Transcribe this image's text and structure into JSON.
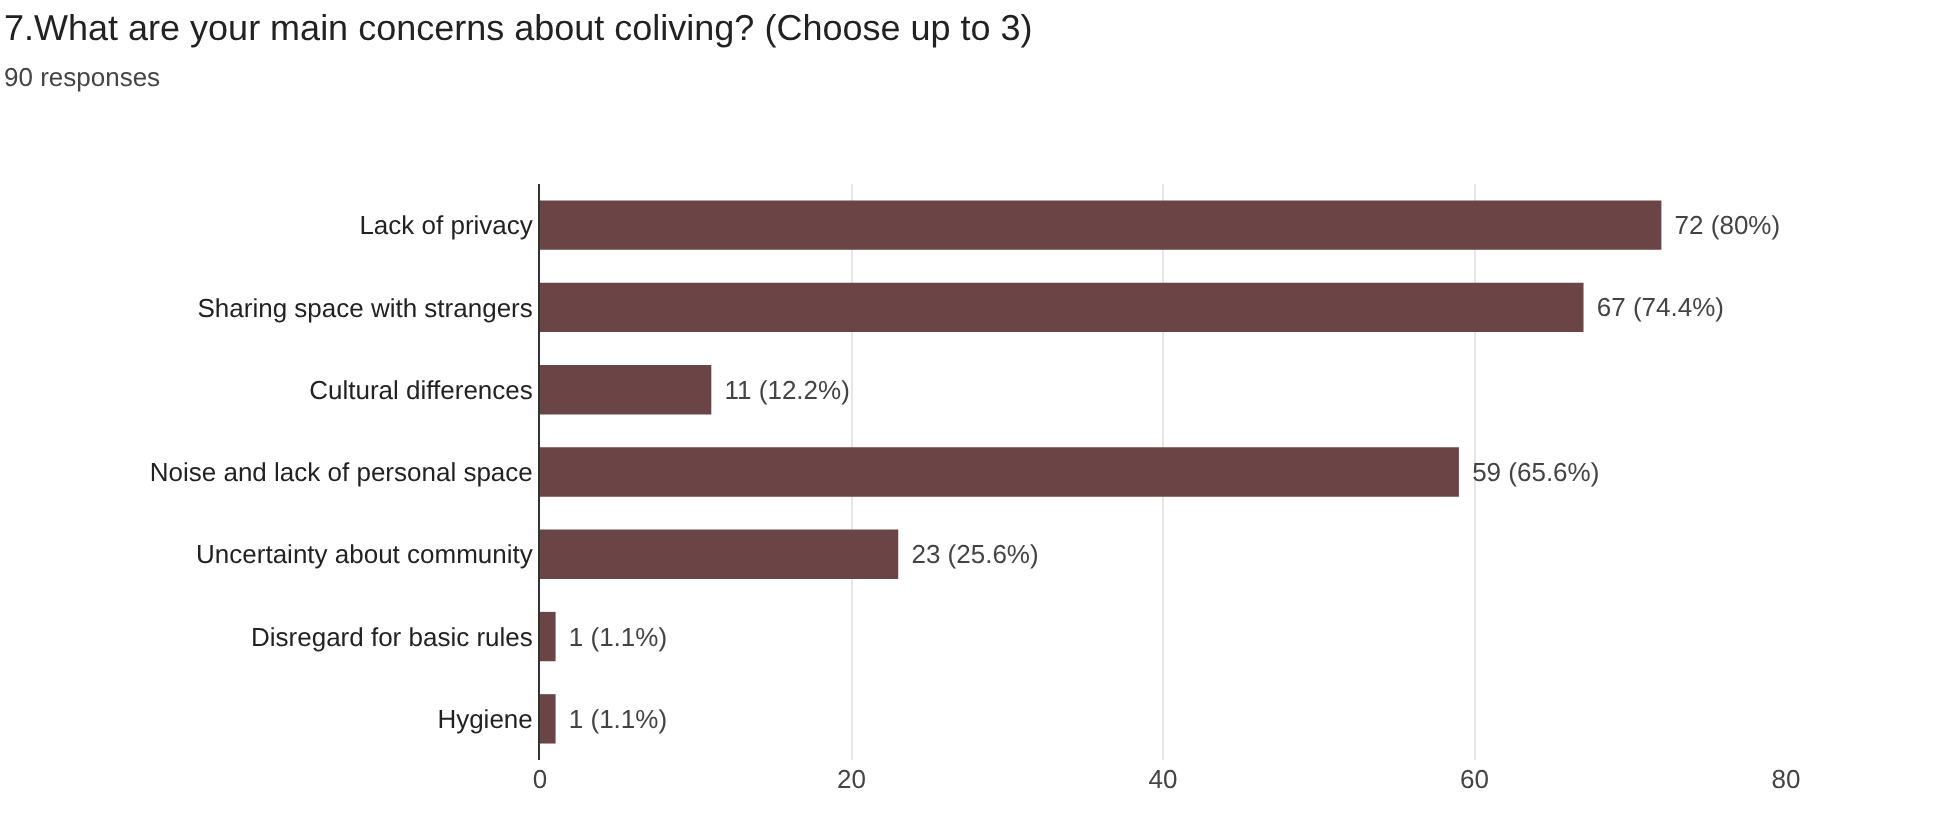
{
  "chart_data": {
    "type": "bar",
    "orientation": "horizontal",
    "title": "7.What are your main concerns about coliving? (Choose up to 3)",
    "subtitle": "90 responses",
    "categories": [
      "Lack of privacy",
      "Sharing space with strangers",
      "Cultural differences",
      "Noise and lack of personal space",
      "Uncertainty about community",
      "Disregard for basic rules",
      "Hygiene"
    ],
    "values": [
      72,
      67,
      11,
      59,
      23,
      1,
      1
    ],
    "value_labels": [
      "72 (80%)",
      "67 (74.4%)",
      "11 (12.2%)",
      "59 (65.6%)",
      "23 (25.6%)",
      "1 (1.1%)",
      "1 (1.1%)"
    ],
    "color": "#6b4545",
    "xlim": [
      0,
      80
    ],
    "xticks": [
      0,
      20,
      40,
      60,
      80
    ],
    "grid": "x"
  }
}
